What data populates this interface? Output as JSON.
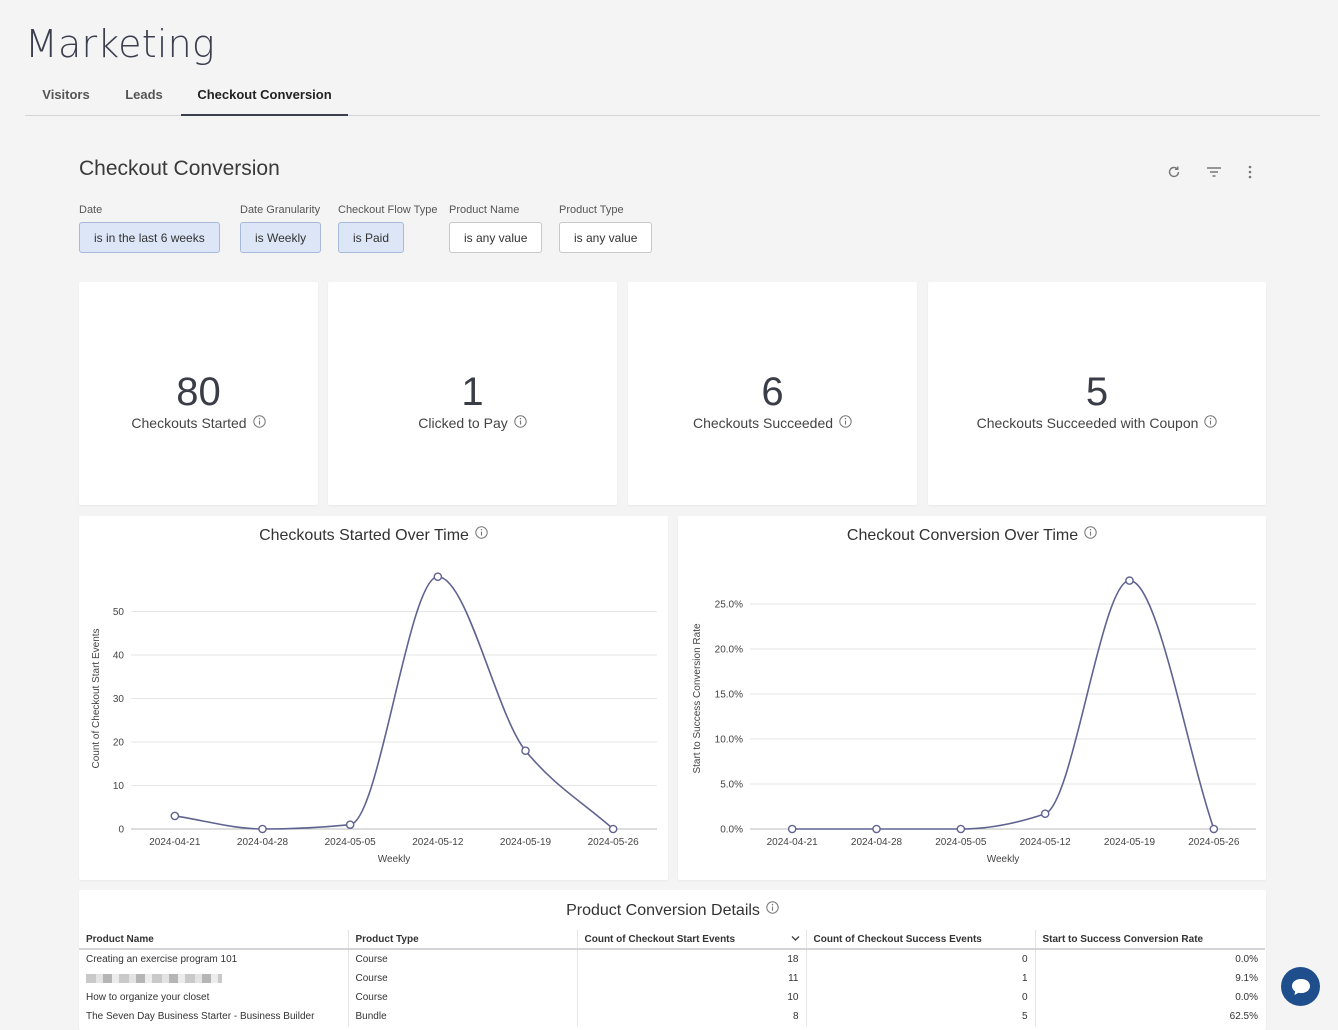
{
  "page": {
    "title": "Marketing"
  },
  "tabs": [
    {
      "label": "Visitors"
    },
    {
      "label": "Leads"
    },
    {
      "label": "Checkout Conversion",
      "active": true
    }
  ],
  "dashboard": {
    "title": "Checkout Conversion",
    "icons": [
      "refresh-icon",
      "filter-icon",
      "more-vertical-icon"
    ]
  },
  "filters": [
    {
      "label": "Date",
      "value": "is in the last 6 weeks",
      "active": true
    },
    {
      "label": "Date Granularity",
      "value": "is Weekly",
      "active": true
    },
    {
      "label": "Checkout Flow Type",
      "value": "is Paid",
      "active": true
    },
    {
      "label": "Product Name",
      "value": "is any value",
      "active": false
    },
    {
      "label": "Product Type",
      "value": "is any value",
      "active": false
    }
  ],
  "kpis": [
    {
      "value": "80",
      "label": "Checkouts Started"
    },
    {
      "value": "1",
      "label": "Clicked to Pay"
    },
    {
      "value": "6",
      "label": "Checkouts Succeeded"
    },
    {
      "value": "5",
      "label": "Checkouts Succeeded with Coupon"
    }
  ],
  "chart_data": [
    {
      "type": "line",
      "title": "Checkouts Started Over Time",
      "xlabel": "Weekly",
      "ylabel": "Count of Checkout Start Events",
      "x": [
        "2024-04-21",
        "2024-04-28",
        "2024-05-05",
        "2024-05-12",
        "2024-05-19",
        "2024-05-26"
      ],
      "series": [
        {
          "values": [
            3,
            0,
            1,
            58,
            18,
            0
          ]
        }
      ],
      "yticks": [
        "0",
        "10",
        "20",
        "30",
        "40",
        "50"
      ],
      "ylim": [
        0,
        60
      ],
      "grid": true,
      "color": "#5f6390"
    },
    {
      "type": "line",
      "title": "Checkout Conversion Over Time",
      "xlabel": "Weekly",
      "ylabel": "Start to Success Conversion Rate",
      "x": [
        "2024-04-21",
        "2024-04-28",
        "2024-05-05",
        "2024-05-12",
        "2024-05-19",
        "2024-05-26"
      ],
      "series": [
        {
          "values": [
            0.0,
            0.0,
            0.0,
            1.7,
            27.6,
            0.0
          ]
        }
      ],
      "yticks": [
        "0.0%",
        "5.0%",
        "10.0%",
        "15.0%",
        "20.0%",
        "25.0%"
      ],
      "ylim": [
        0,
        29
      ],
      "grid": true,
      "color": "#5f6390"
    }
  ],
  "table": {
    "title": "Product Conversion Details",
    "columns": [
      "Product Name",
      "Product Type",
      "Count of Checkout Start Events",
      "Count of Checkout Success Events",
      "Start to Success Conversion Rate"
    ],
    "rows": [
      [
        "Creating an exercise program 101",
        "Course",
        "18",
        "0",
        "0.0%"
      ],
      [
        "",
        "Course",
        "11",
        "1",
        "9.1%"
      ],
      [
        "How to organize your closet",
        "Course",
        "10",
        "0",
        "0.0%"
      ],
      [
        "The Seven Day Business Starter - Business Builder",
        "Bundle",
        "8",
        "5",
        "62.5%"
      ]
    ]
  }
}
